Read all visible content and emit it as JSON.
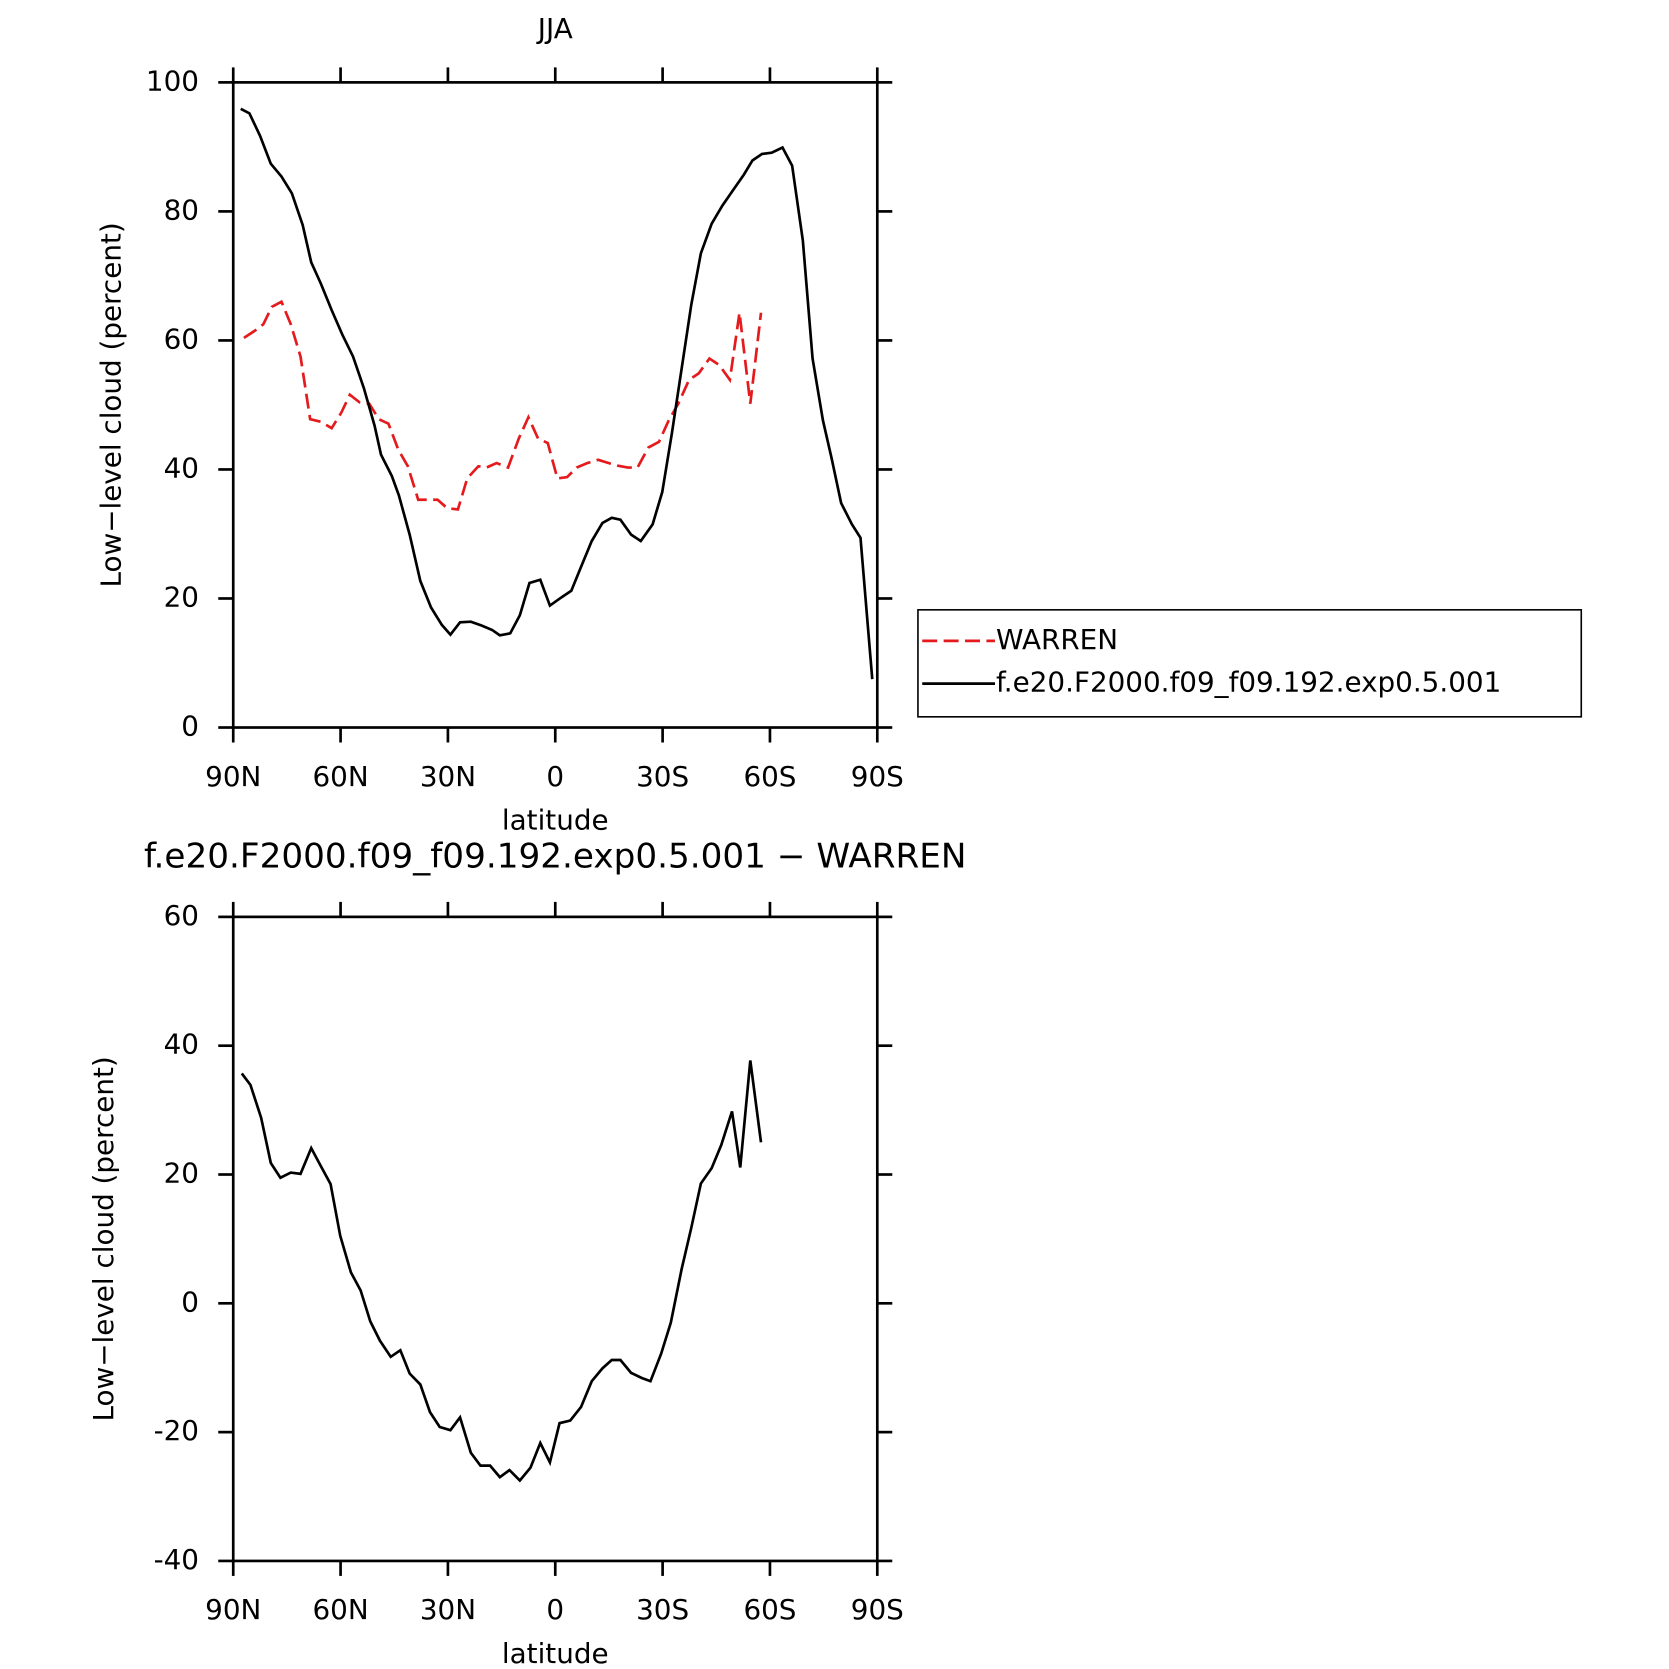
{
  "chart_data": [
    {
      "type": "line",
      "title": "JJA",
      "x_label": "latitude",
      "y_label": "Low−level cloud (percent)",
      "xlim": [
        90,
        -90
      ],
      "xticks": [
        {
          "value": 90,
          "label": "90N"
        },
        {
          "value": 60,
          "label": "60N"
        },
        {
          "value": 30,
          "label": "30N"
        },
        0,
        {
          "value": -30,
          "label": "30S"
        },
        {
          "value": -60,
          "label": "60S"
        },
        {
          "value": -90,
          "label": "90S"
        }
      ],
      "ylim": [
        0,
        100
      ],
      "yticks": [
        0,
        20,
        40,
        60,
        80,
        100
      ],
      "legend": "right",
      "series": [
        {
          "name": "WARREN",
          "color": "#e41a1c",
          "line_style": "dashed",
          "x": [
            87,
            84,
            81.6,
            79.2,
            76.5,
            73.9,
            71.2,
            68.5,
            65.5,
            62.5,
            59.8,
            57.4,
            54.7,
            52,
            49.3,
            46.6,
            43.9,
            41.2,
            38.3,
            35.6,
            32.9,
            30.2,
            27.2,
            24.6,
            21.5,
            19.2,
            16.4,
            13.2,
            10.2,
            7.5,
            4.8,
            2.1,
            -0.6,
            -3.3,
            -6,
            -9,
            -12,
            -14.3,
            -17.3,
            -20.3,
            -23,
            -26,
            -29,
            -31.7,
            -34.4,
            -37.4,
            -40.1,
            -43.1,
            -45.8,
            -48.8,
            -51.5,
            -54.5,
            -57.5
          ],
          "values": [
            60.4,
            61.5,
            62.5,
            65.2,
            66,
            62.5,
            57.5,
            47.8,
            47.4,
            46.4,
            48.8,
            51.6,
            50.4,
            50.2,
            47.8,
            47.1,
            43.1,
            40.5,
            35.3,
            35.3,
            35.3,
            34,
            33.8,
            38.6,
            40.5,
            40.3,
            41,
            40.3,
            44.8,
            48.1,
            44.8,
            44.1,
            38.6,
            38.8,
            40.3,
            41,
            41.5,
            41.1,
            40.6,
            40.3,
            40.3,
            43.4,
            44.3,
            47.6,
            50.2,
            53.9,
            54.9,
            57.2,
            56.2,
            53.9,
            64.3,
            50.2,
            64.3
          ]
        },
        {
          "name": "f.e20.F2000.f09_f09.192.exp0.5.001",
          "color": "#000000",
          "line_style": "solid",
          "x": [
            87.9,
            85.5,
            82.5,
            79.5,
            76.5,
            73.6,
            70.6,
            68.2,
            65.5,
            62.5,
            59.5,
            56.5,
            53.5,
            50.5,
            48.7,
            45.7,
            43.7,
            40.7,
            37.7,
            34.7,
            31.7,
            29.3,
            26.6,
            23.6,
            20.6,
            17.6,
            15.5,
            12.6,
            9.9,
            7.2,
            4.2,
            1.5,
            -1.8,
            -4.5,
            -7.2,
            -10.2,
            -13.2,
            -15.8,
            -18.2,
            -21.2,
            -23.9,
            -27.2,
            -29.9,
            -32.6,
            -35.3,
            -38,
            -40.7,
            -43.7,
            -46.7,
            -49.7,
            -52.7,
            -55.1,
            -57.8,
            -60.5,
            -63.5,
            -66.2,
            -69.2,
            -71.9,
            -74.8,
            -77.2,
            -79.9,
            -82.9,
            -85.3,
            -88.6
          ],
          "values": [
            95.9,
            95.2,
            91.7,
            87.4,
            85.4,
            82.8,
            77.9,
            72.1,
            68.8,
            64.7,
            60.9,
            57.5,
            52.6,
            46.8,
            42.3,
            39,
            36,
            29.9,
            22.7,
            18.6,
            15.9,
            14.4,
            16.3,
            16.4,
            15.8,
            15.1,
            14.3,
            14.6,
            17.4,
            22.4,
            22.9,
            18.9,
            20.2,
            21.2,
            24.9,
            28.9,
            31.7,
            32.5,
            32.2,
            29.9,
            28.9,
            31.5,
            36.5,
            45.6,
            55.6,
            65.5,
            73.5,
            78.1,
            80.9,
            83.3,
            85.7,
            87.9,
            88.9,
            89.1,
            89.9,
            87.1,
            75.5,
            57.2,
            47.6,
            41.8,
            34.8,
            31.5,
            29.4,
            7.5
          ]
        }
      ]
    },
    {
      "type": "line",
      "title": "f.e20.F2000.f09_f09.192.exp0.5.001 − WARREN",
      "x_label": "latitude",
      "y_label": "Low−level cloud (percent)",
      "xlim": [
        90,
        -90
      ],
      "xticks": [
        {
          "value": 90,
          "label": "90N"
        },
        {
          "value": 60,
          "label": "60N"
        },
        {
          "value": 30,
          "label": "30N"
        },
        0,
        {
          "value": -30,
          "label": "30S"
        },
        {
          "value": -60,
          "label": "60S"
        },
        {
          "value": -90,
          "label": "90S"
        }
      ],
      "ylim": [
        -40,
        60
      ],
      "yticks": [
        -40,
        -20,
        0,
        20,
        40,
        60
      ],
      "series": [
        {
          "color": "#000000",
          "line_style": "solid",
          "x": [
            87.6,
            85.2,
            82.2,
            79.5,
            76.8,
            73.9,
            71.2,
            68.2,
            65.5,
            62.8,
            60.1,
            57.1,
            54.4,
            51.7,
            49,
            46,
            43.3,
            40.7,
            37.7,
            35,
            32.3,
            29.3,
            26.6,
            23.6,
            20.9,
            18.2,
            15.5,
            12.8,
            9.9,
            6.9,
            4.2,
            1.5,
            -1.2,
            -4.2,
            -7.2,
            -10.2,
            -13.2,
            -15.8,
            -18.2,
            -21.2,
            -24.2,
            -26.6,
            -29.6,
            -32.3,
            -35.3,
            -38,
            -40.7,
            -43.7,
            -46.4,
            -49.4,
            -51.7,
            -54.5,
            -57.5
          ],
          "values": [
            35.7,
            33.9,
            28.8,
            21.8,
            19.5,
            20.3,
            20.1,
            24.1,
            21.3,
            18.5,
            10.5,
            4.8,
            2,
            -2.8,
            -5.8,
            -8.3,
            -7.3,
            -10.9,
            -12.6,
            -16.9,
            -19.2,
            -19.7,
            -17.7,
            -23.2,
            -25.2,
            -25.2,
            -27,
            -25.9,
            -27.5,
            -25.5,
            -21.7,
            -24.7,
            -18.6,
            -18.2,
            -16.1,
            -12.1,
            -10.1,
            -8.8,
            -8.8,
            -10.8,
            -11.6,
            -12.1,
            -7.8,
            -3,
            5.3,
            11.7,
            18.6,
            21,
            24.6,
            29.8,
            21.1,
            37.7,
            25
          ]
        }
      ]
    }
  ]
}
